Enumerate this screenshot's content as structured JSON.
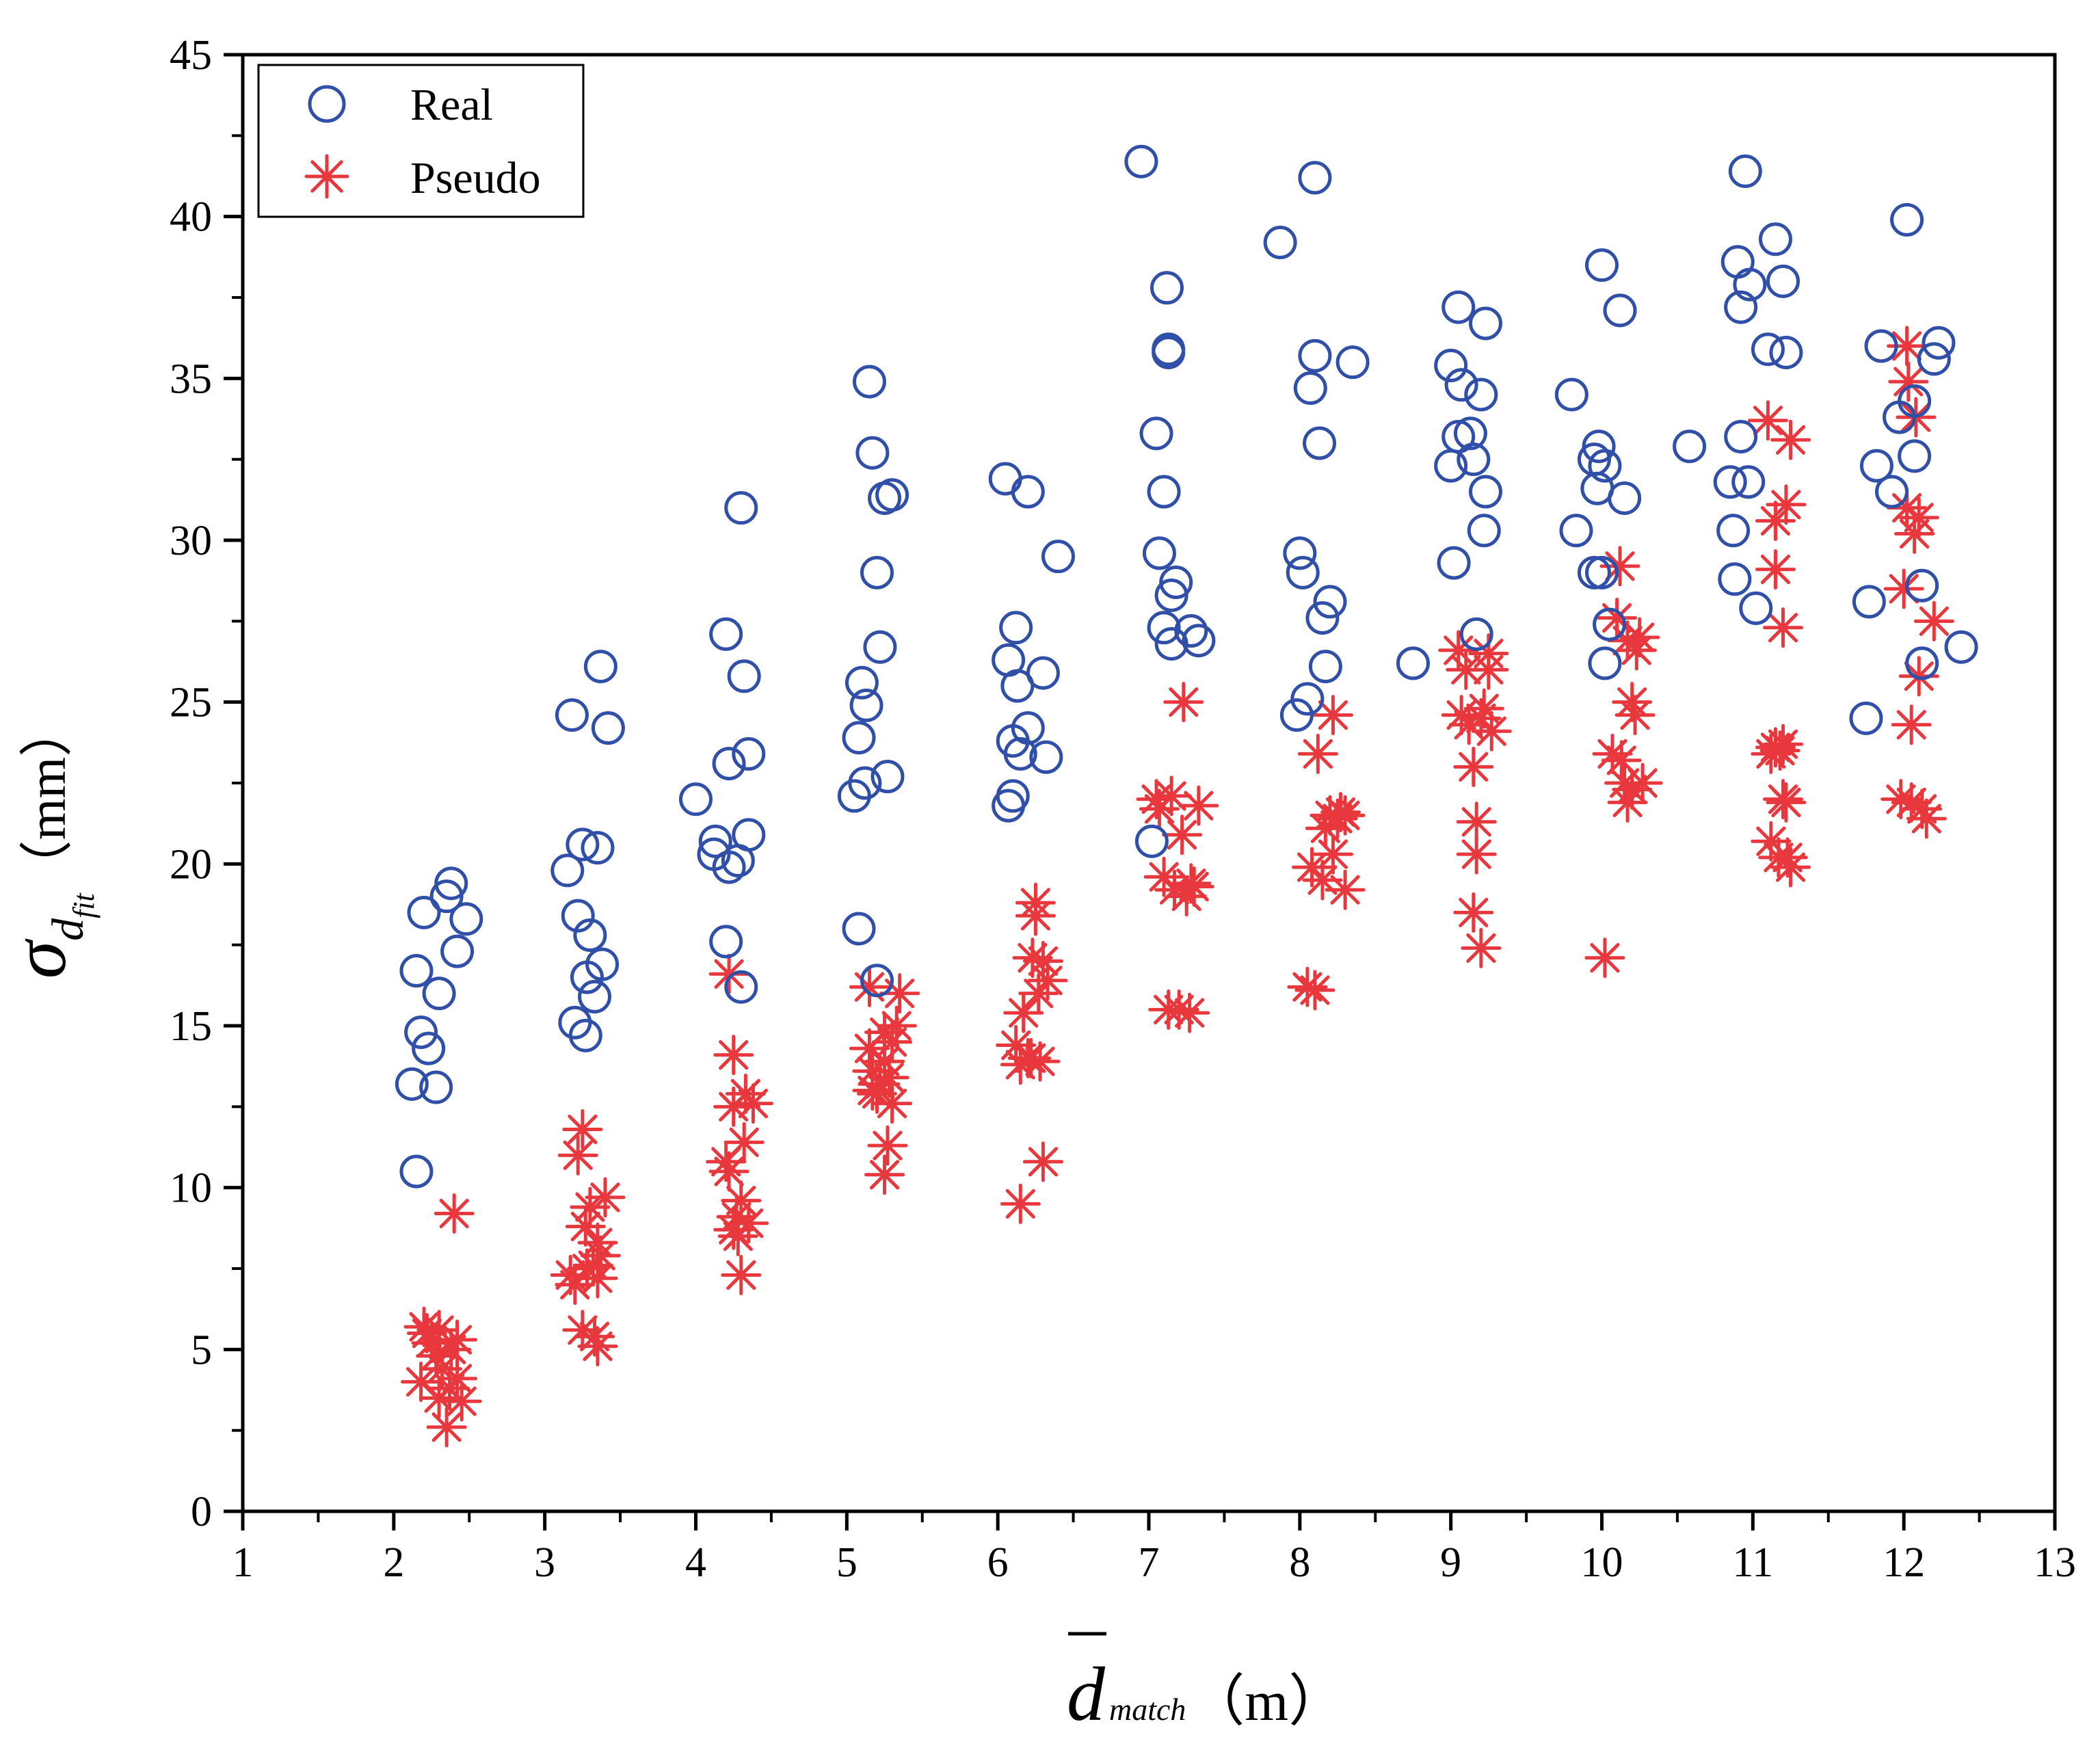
{
  "chart_data": {
    "type": "scatter",
    "title": "",
    "xlabel": {
      "symbol": "d",
      "subscript": "match",
      "unit": "（m）"
    },
    "ylabel": {
      "symbol": "σ",
      "subscript_base": "d",
      "subscript_sub": "fit",
      "unit": "（mm）"
    },
    "xlim": [
      1,
      13
    ],
    "ylim": [
      0,
      45
    ],
    "xticks": [
      1,
      2,
      3,
      4,
      5,
      6,
      7,
      8,
      9,
      10,
      11,
      12,
      13
    ],
    "yticks": [
      0,
      5,
      10,
      15,
      20,
      25,
      30,
      35,
      40,
      45
    ],
    "grid": false,
    "legend_position": "top-left",
    "series": [
      {
        "name": "Real",
        "marker": "circle",
        "color": "#2F4FA8",
        "points": [
          [
            2.12,
            13.2
          ],
          [
            2.15,
            10.5
          ],
          [
            2.15,
            16.7
          ],
          [
            2.18,
            14.8
          ],
          [
            2.2,
            18.5
          ],
          [
            2.23,
            14.3
          ],
          [
            2.28,
            13.1
          ],
          [
            2.3,
            16.0
          ],
          [
            2.35,
            19.0
          ],
          [
            2.38,
            19.4
          ],
          [
            2.42,
            17.3
          ],
          [
            2.48,
            18.3
          ],
          [
            3.15,
            19.8
          ],
          [
            3.18,
            24.6
          ],
          [
            3.2,
            15.1
          ],
          [
            3.22,
            18.4
          ],
          [
            3.25,
            20.6
          ],
          [
            3.27,
            14.7
          ],
          [
            3.28,
            16.5
          ],
          [
            3.3,
            17.8
          ],
          [
            3.33,
            15.9
          ],
          [
            3.35,
            20.5
          ],
          [
            3.38,
            16.9
          ],
          [
            3.37,
            26.1
          ],
          [
            3.42,
            24.2
          ],
          [
            4.0,
            22.0
          ],
          [
            4.12,
            20.3
          ],
          [
            4.13,
            20.7
          ],
          [
            4.2,
            17.6
          ],
          [
            4.2,
            27.1
          ],
          [
            4.22,
            19.9
          ],
          [
            4.22,
            23.1
          ],
          [
            4.28,
            20.1
          ],
          [
            4.3,
            16.2
          ],
          [
            4.3,
            31.0
          ],
          [
            4.32,
            25.8
          ],
          [
            4.35,
            20.9
          ],
          [
            4.35,
            23.4
          ],
          [
            5.05,
            22.1
          ],
          [
            5.08,
            18.0
          ],
          [
            5.08,
            23.9
          ],
          [
            5.1,
            25.6
          ],
          [
            5.12,
            22.5
          ],
          [
            5.13,
            24.9
          ],
          [
            5.15,
            34.9
          ],
          [
            5.17,
            32.7
          ],
          [
            5.2,
            16.4
          ],
          [
            5.2,
            29.0
          ],
          [
            5.22,
            26.7
          ],
          [
            5.25,
            31.3
          ],
          [
            5.27,
            22.7
          ],
          [
            5.3,
            31.4
          ],
          [
            6.05,
            31.9
          ],
          [
            6.07,
            21.8
          ],
          [
            6.07,
            26.3
          ],
          [
            6.1,
            22.1
          ],
          [
            6.1,
            23.8
          ],
          [
            6.12,
            27.3
          ],
          [
            6.13,
            25.5
          ],
          [
            6.15,
            23.4
          ],
          [
            6.2,
            31.5
          ],
          [
            6.2,
            24.2
          ],
          [
            6.3,
            25.9
          ],
          [
            6.32,
            23.3
          ],
          [
            6.4,
            29.5
          ],
          [
            6.95,
            41.7
          ],
          [
            7.02,
            20.7
          ],
          [
            7.05,
            33.3
          ],
          [
            7.07,
            29.6
          ],
          [
            7.1,
            31.5
          ],
          [
            7.1,
            27.3
          ],
          [
            7.12,
            37.8
          ],
          [
            7.13,
            35.8
          ],
          [
            7.13,
            35.9
          ],
          [
            7.15,
            26.8
          ],
          [
            7.15,
            28.3
          ],
          [
            7.18,
            28.7
          ],
          [
            7.28,
            27.2
          ],
          [
            7.33,
            26.9
          ],
          [
            7.87,
            39.2
          ],
          [
            7.98,
            24.6
          ],
          [
            8.0,
            29.6
          ],
          [
            8.02,
            29.0
          ],
          [
            8.05,
            25.1
          ],
          [
            8.07,
            34.7
          ],
          [
            8.1,
            41.2
          ],
          [
            8.1,
            35.7
          ],
          [
            8.13,
            33.0
          ],
          [
            8.15,
            27.6
          ],
          [
            8.17,
            26.1
          ],
          [
            8.2,
            28.1
          ],
          [
            8.35,
            35.5
          ],
          [
            8.75,
            26.2
          ],
          [
            9.0,
            32.3
          ],
          [
            9.0,
            35.4
          ],
          [
            9.02,
            29.3
          ],
          [
            9.05,
            33.2
          ],
          [
            9.05,
            37.2
          ],
          [
            9.07,
            34.8
          ],
          [
            9.13,
            33.3
          ],
          [
            9.15,
            32.5
          ],
          [
            9.17,
            27.1
          ],
          [
            9.2,
            34.5
          ],
          [
            9.22,
            30.3
          ],
          [
            9.23,
            31.5
          ],
          [
            9.23,
            36.7
          ],
          [
            9.8,
            34.5
          ],
          [
            9.83,
            30.3
          ],
          [
            9.95,
            32.5
          ],
          [
            9.95,
            29.0
          ],
          [
            9.97,
            31.6
          ],
          [
            9.98,
            32.9
          ],
          [
            10.0,
            38.5
          ],
          [
            10.0,
            29.0
          ],
          [
            10.02,
            26.2
          ],
          [
            10.05,
            27.4
          ],
          [
            10.02,
            32.3
          ],
          [
            10.12,
            37.1
          ],
          [
            10.15,
            31.3
          ],
          [
            10.58,
            32.9
          ],
          [
            10.85,
            31.8
          ],
          [
            10.87,
            30.3
          ],
          [
            10.88,
            28.8
          ],
          [
            10.9,
            38.6
          ],
          [
            10.92,
            33.2
          ],
          [
            10.92,
            37.2
          ],
          [
            10.95,
            41.4
          ],
          [
            10.97,
            31.8
          ],
          [
            10.98,
            37.9
          ],
          [
            11.02,
            27.9
          ],
          [
            11.1,
            35.9
          ],
          [
            11.15,
            39.3
          ],
          [
            11.2,
            38.0
          ],
          [
            11.22,
            35.8
          ],
          [
            11.75,
            24.5
          ],
          [
            11.77,
            28.1
          ],
          [
            11.82,
            32.3
          ],
          [
            11.85,
            36.0
          ],
          [
            11.92,
            31.5
          ],
          [
            11.97,
            33.8
          ],
          [
            12.02,
            39.9
          ],
          [
            12.07,
            34.3
          ],
          [
            12.07,
            32.6
          ],
          [
            12.12,
            28.6
          ],
          [
            12.12,
            26.2
          ],
          [
            12.2,
            35.6
          ],
          [
            12.23,
            36.1
          ],
          [
            12.38,
            26.7
          ]
        ]
      },
      {
        "name": "Pseudo",
        "marker": "asterisk",
        "color": "#E8383D",
        "points": [
          [
            2.18,
            4.0
          ],
          [
            2.2,
            5.7
          ],
          [
            2.22,
            5.5
          ],
          [
            2.25,
            5.2
          ],
          [
            2.28,
            4.8
          ],
          [
            2.3,
            5.6
          ],
          [
            2.3,
            3.5
          ],
          [
            2.32,
            4.4
          ],
          [
            2.35,
            2.6
          ],
          [
            2.37,
            3.8
          ],
          [
            2.38,
            5.0
          ],
          [
            2.4,
            9.2
          ],
          [
            2.42,
            4.1
          ],
          [
            2.45,
            3.4
          ],
          [
            2.42,
            5.3
          ],
          [
            3.17,
            7.3
          ],
          [
            3.2,
            7.0
          ],
          [
            3.22,
            11.0
          ],
          [
            3.25,
            11.8
          ],
          [
            3.25,
            5.6
          ],
          [
            3.27,
            8.8
          ],
          [
            3.28,
            7.5
          ],
          [
            3.3,
            9.4
          ],
          [
            3.32,
            7.6
          ],
          [
            3.33,
            5.4
          ],
          [
            3.35,
            8.3
          ],
          [
            3.35,
            5.1
          ],
          [
            3.37,
            7.9
          ],
          [
            3.4,
            9.7
          ],
          [
            3.35,
            7.2
          ],
          [
            4.2,
            10.8
          ],
          [
            4.22,
            10.5
          ],
          [
            4.22,
            16.6
          ],
          [
            4.25,
            14.1
          ],
          [
            4.25,
            12.5
          ],
          [
            4.27,
            9.1
          ],
          [
            4.28,
            8.5
          ],
          [
            4.3,
            9.6
          ],
          [
            4.3,
            7.3
          ],
          [
            4.32,
            11.4
          ],
          [
            4.33,
            12.9
          ],
          [
            4.35,
            8.9
          ],
          [
            4.38,
            12.6
          ],
          [
            4.25,
            8.7
          ],
          [
            5.15,
            16.2
          ],
          [
            5.15,
            14.3
          ],
          [
            5.17,
            13.6
          ],
          [
            5.17,
            13.0
          ],
          [
            5.2,
            12.9
          ],
          [
            5.22,
            13.2
          ],
          [
            5.25,
            14.8
          ],
          [
            5.25,
            10.4
          ],
          [
            5.27,
            11.3
          ],
          [
            5.28,
            13.4
          ],
          [
            5.3,
            12.6
          ],
          [
            5.3,
            14.5
          ],
          [
            5.33,
            15.0
          ],
          [
            5.35,
            16.0
          ],
          [
            5.25,
            13.9
          ],
          [
            6.12,
            14.4
          ],
          [
            6.15,
            13.8
          ],
          [
            6.15,
            9.5
          ],
          [
            6.17,
            15.4
          ],
          [
            6.2,
            14.0
          ],
          [
            6.22,
            14.0
          ],
          [
            6.23,
            17.1
          ],
          [
            6.25,
            18.8
          ],
          [
            6.25,
            18.4
          ],
          [
            6.27,
            16.0
          ],
          [
            6.28,
            13.9
          ],
          [
            6.3,
            17.0
          ],
          [
            6.3,
            10.8
          ],
          [
            6.33,
            16.4
          ],
          [
            7.05,
            22.0
          ],
          [
            7.07,
            21.7
          ],
          [
            7.1,
            19.6
          ],
          [
            7.13,
            15.5
          ],
          [
            7.15,
            22.1
          ],
          [
            7.17,
            19.2
          ],
          [
            7.2,
            15.5
          ],
          [
            7.22,
            20.9
          ],
          [
            7.23,
            25.0
          ],
          [
            7.25,
            19.0
          ],
          [
            7.27,
            15.4
          ],
          [
            7.28,
            19.4
          ],
          [
            7.33,
            21.8
          ],
          [
            7.3,
            19.3
          ],
          [
            8.05,
            16.2
          ],
          [
            8.08,
            19.9
          ],
          [
            8.1,
            16.1
          ],
          [
            8.12,
            23.4
          ],
          [
            8.15,
            19.5
          ],
          [
            8.17,
            21.1
          ],
          [
            8.2,
            21.5
          ],
          [
            8.22,
            24.6
          ],
          [
            8.22,
            20.3
          ],
          [
            8.25,
            21.4
          ],
          [
            8.27,
            21.6
          ],
          [
            8.3,
            19.2
          ],
          [
            8.3,
            21.5
          ],
          [
            9.05,
            26.6
          ],
          [
            9.07,
            24.6
          ],
          [
            9.1,
            26.0
          ],
          [
            9.12,
            24.3
          ],
          [
            9.15,
            23.0
          ],
          [
            9.15,
            18.5
          ],
          [
            9.17,
            21.3
          ],
          [
            9.17,
            20.3
          ],
          [
            9.2,
            17.4
          ],
          [
            9.2,
            24.5
          ],
          [
            9.22,
            24.8
          ],
          [
            9.25,
            26.5
          ],
          [
            9.27,
            24.1
          ],
          [
            9.25,
            26.0
          ],
          [
            10.02,
            17.1
          ],
          [
            10.07,
            23.4
          ],
          [
            10.1,
            27.6
          ],
          [
            10.12,
            29.2
          ],
          [
            10.13,
            23.2
          ],
          [
            10.15,
            22.5
          ],
          [
            10.17,
            21.9
          ],
          [
            10.17,
            26.9
          ],
          [
            10.2,
            22.3
          ],
          [
            10.22,
            24.6
          ],
          [
            10.23,
            26.6
          ],
          [
            10.25,
            27.0
          ],
          [
            10.27,
            22.5
          ],
          [
            10.2,
            25.0
          ],
          [
            11.1,
            33.7
          ],
          [
            11.12,
            23.4
          ],
          [
            11.12,
            20.7
          ],
          [
            11.15,
            30.6
          ],
          [
            11.15,
            29.1
          ],
          [
            11.15,
            23.6
          ],
          [
            11.17,
            20.2
          ],
          [
            11.18,
            23.5
          ],
          [
            11.2,
            27.3
          ],
          [
            11.2,
            22.0
          ],
          [
            11.22,
            31.1
          ],
          [
            11.22,
            21.9
          ],
          [
            11.23,
            20.2
          ],
          [
            11.25,
            19.9
          ],
          [
            11.25,
            33.1
          ],
          [
            11.2,
            23.7
          ],
          [
            11.98,
            22.0
          ],
          [
            12.0,
            28.5
          ],
          [
            12.02,
            31.0
          ],
          [
            12.02,
            36.0
          ],
          [
            12.03,
            34.9
          ],
          [
            12.05,
            21.9
          ],
          [
            12.05,
            24.3
          ],
          [
            12.07,
            30.2
          ],
          [
            12.08,
            33.8
          ],
          [
            12.1,
            25.8
          ],
          [
            12.1,
            30.7
          ],
          [
            12.12,
            21.7
          ],
          [
            12.15,
            21.4
          ],
          [
            12.2,
            27.5
          ]
        ]
      }
    ]
  }
}
